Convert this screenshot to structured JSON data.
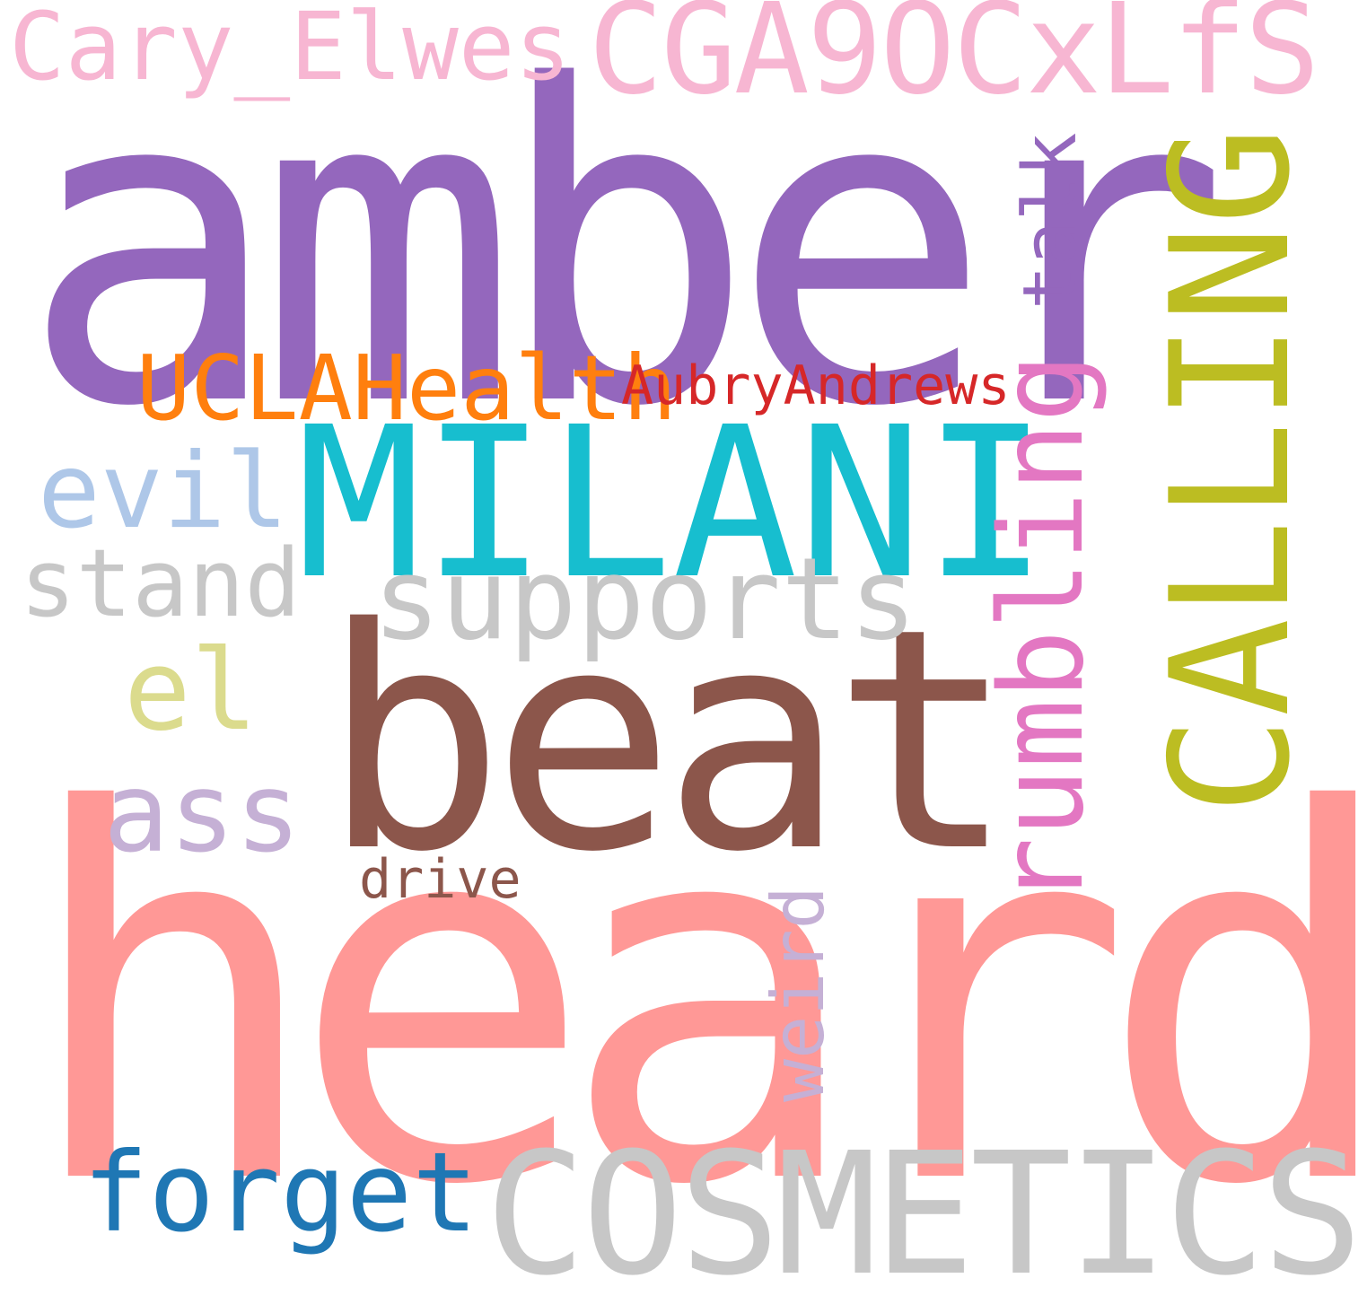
{
  "words": {
    "amber": {
      "text": "amber",
      "color": "#9467bd"
    },
    "heard": {
      "text": "heard",
      "color": "#ff9896"
    },
    "beat": {
      "text": "beat",
      "color": "#8c564b"
    },
    "milani": {
      "text": "MILANI",
      "color": "#17becf"
    },
    "cosmetics": {
      "text": "COSMETICS",
      "color": "#c7c7c7"
    },
    "cga": {
      "text": "CGA9OCxLfS",
      "color": "#f7b6d2"
    },
    "cary": {
      "text": "Cary_Elwes",
      "color": "#f7b6d2"
    },
    "forget": {
      "text": "forget",
      "color": "#1f77b4"
    },
    "supports": {
      "text": "supports",
      "color": "#c7c7c7"
    },
    "evil": {
      "text": "evil",
      "color": "#aec7e8"
    },
    "stand": {
      "text": "stand",
      "color": "#c7c7c7"
    },
    "el": {
      "text": "el",
      "color": "#dbdb8d"
    },
    "ass": {
      "text": "ass",
      "color": "#c5b0d5"
    },
    "ucla": {
      "text": "UCLAHealth",
      "color": "#ff7f0e"
    },
    "aubry": {
      "text": "AubryAndrews",
      "color": "#d62728"
    },
    "drive": {
      "text": "drive",
      "color": "#8c564b"
    },
    "calling": {
      "text": "CALLING",
      "color": "#bcbd22"
    },
    "rumbling": {
      "text": "rumbling",
      "color": "#e377c2"
    },
    "talk": {
      "text": "talk",
      "color": "#9467bd"
    },
    "weird": {
      "text": "weird",
      "color": "#c5b0d5"
    }
  }
}
